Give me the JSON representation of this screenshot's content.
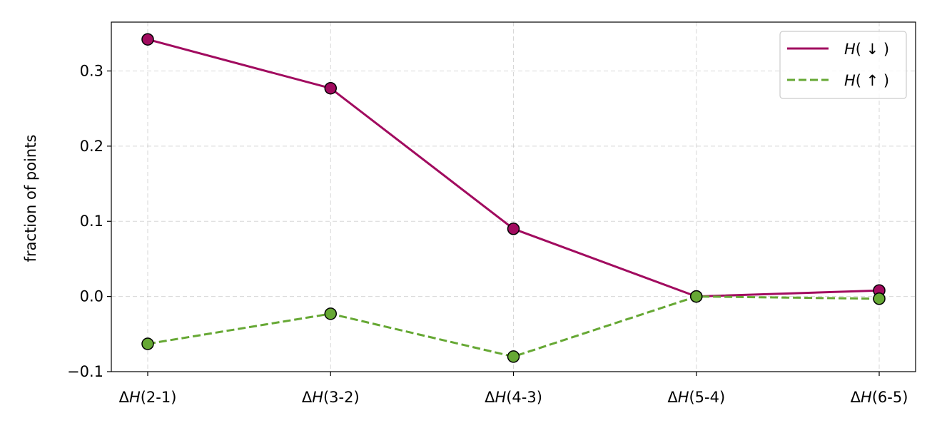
{
  "chart_data": {
    "type": "line",
    "categories": [
      "ΔH(2-1)",
      "ΔH(3-2)",
      "ΔH(4-3)",
      "ΔH(5-4)",
      "ΔH(6-5)"
    ],
    "category_tick_parts": [
      {
        "delta": "Δ",
        "var": "H",
        "rest": "(2-1)"
      },
      {
        "delta": "Δ",
        "var": "H",
        "rest": "(3-2)"
      },
      {
        "delta": "Δ",
        "var": "H",
        "rest": "(4-3)"
      },
      {
        "delta": "Δ",
        "var": "H",
        "rest": "(5-4)"
      },
      {
        "delta": "Δ",
        "var": "H",
        "rest": "(6-5)"
      }
    ],
    "series": [
      {
        "name": "H( ↓ )",
        "name_var": "H",
        "name_rest": "( ↓ )",
        "values": [
          0.342,
          0.277,
          0.09,
          0.0,
          0.008
        ],
        "color": "#a10b5f",
        "line_style": "solid"
      },
      {
        "name": "H( ↑ )",
        "name_var": "H",
        "name_rest": "( ↑ )",
        "values": [
          -0.063,
          -0.023,
          -0.08,
          0.0,
          -0.003
        ],
        "color": "#66a834",
        "line_style": "dashed"
      }
    ],
    "xlabel": "",
    "ylabel": "fraction of points",
    "ylim": [
      -0.1,
      0.365
    ],
    "yticks": [
      -0.1,
      0.0,
      0.1,
      0.2,
      0.3
    ],
    "ytick_labels": [
      "−0.1",
      "0.0",
      "0.1",
      "0.2",
      "0.3"
    ],
    "grid": true,
    "legend_position": "top-right",
    "marker_edge_color": "#000000"
  }
}
